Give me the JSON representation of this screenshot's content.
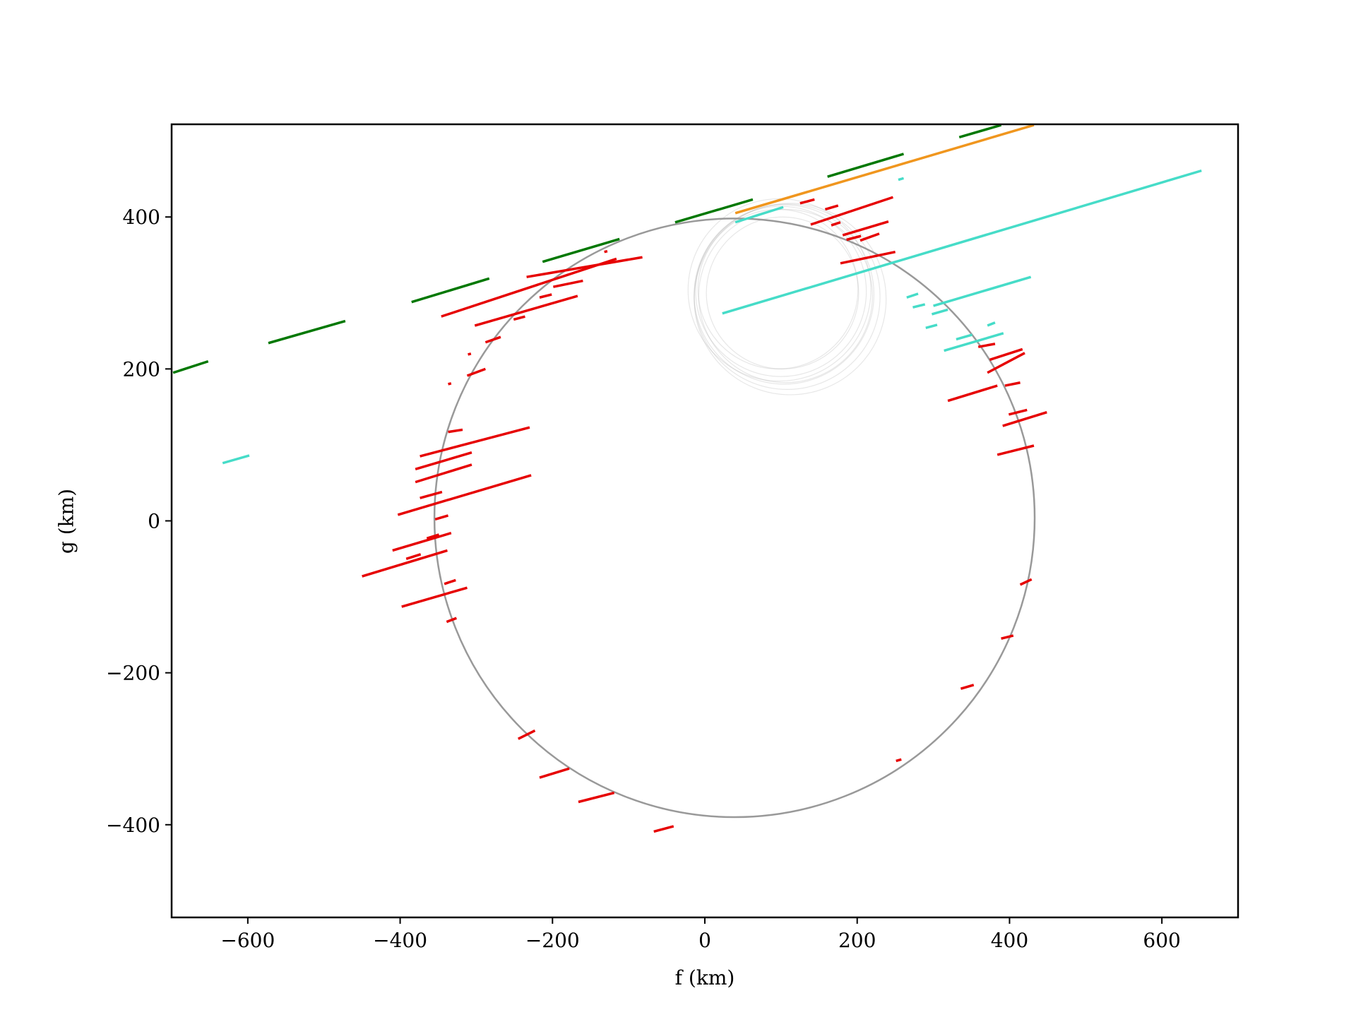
{
  "chart_data": {
    "type": "chords",
    "xlabel": "f (km)",
    "ylabel": "g (km)",
    "xlim": [
      -700,
      700
    ],
    "ylim": [
      -522,
      522
    ],
    "xticks": [
      {
        "value": -600,
        "label": "−600"
      },
      {
        "value": -400,
        "label": "−400"
      },
      {
        "value": -200,
        "label": "−200"
      },
      0,
      200,
      400,
      600
    ],
    "yticks": [
      {
        "value": -400,
        "label": "−400"
      },
      {
        "value": -200,
        "label": "−200"
      },
      0,
      200,
      400
    ],
    "series": [
      {
        "color": "#007800",
        "segments": [
          [
            -698,
            195,
            -652,
            210
          ],
          [
            -573,
            234,
            -472,
            263
          ],
          [
            -385,
            288,
            -283,
            319
          ],
          [
            -213,
            341,
            -112,
            371
          ],
          [
            -39,
            393,
            63,
            423
          ],
          [
            161,
            453,
            261,
            483
          ],
          [
            334,
            505,
            389,
            521
          ]
        ]
      },
      {
        "color": "#f0961e",
        "segments": [
          [
            40,
            405,
            432,
            521
          ]
        ]
      },
      {
        "color": "#46dcc8",
        "segments": [
          [
            23,
            273,
            652,
            461
          ],
          [
            -633,
            76,
            -598,
            86
          ],
          [
            254,
            449,
            261,
            451
          ],
          [
            314,
            224,
            392,
            247
          ],
          [
            300,
            283,
            428,
            321
          ],
          [
            265,
            294,
            280,
            299
          ],
          [
            273,
            281,
            289,
            285
          ],
          [
            298,
            272,
            319,
            278
          ],
          [
            290,
            254,
            305,
            258
          ],
          [
            330,
            239,
            351,
            245
          ],
          [
            371,
            257,
            381,
            261
          ],
          [
            40,
            393,
            103,
            413
          ]
        ]
      },
      {
        "color": "#e60000",
        "segments": [
          [
            -346,
            269,
            -116,
            345
          ],
          [
            -302,
            257,
            -167,
            296
          ],
          [
            -234,
            321,
            -82,
            347
          ],
          [
            -199,
            308,
            -160,
            316
          ],
          [
            -251,
            265,
            -236,
            269
          ],
          [
            -288,
            235,
            -268,
            242
          ],
          [
            -311,
            219,
            -307,
            220
          ],
          [
            -312,
            191,
            -288,
            200
          ],
          [
            -337,
            180,
            -333,
            181
          ],
          [
            -132,
            354,
            -128,
            355
          ],
          [
            -217,
            294,
            -201,
            298
          ],
          [
            -374,
            85,
            -230,
            123
          ],
          [
            -380,
            68,
            -306,
            90
          ],
          [
            -380,
            51,
            -306,
            74
          ],
          [
            -403,
            8,
            -228,
            60
          ],
          [
            -337,
            117,
            -318,
            120
          ],
          [
            -374,
            30,
            -345,
            38
          ],
          [
            -354,
            2,
            -337,
            7
          ],
          [
            -410,
            -39,
            -333,
            -16
          ],
          [
            -450,
            -73,
            -338,
            -39
          ],
          [
            -398,
            -113,
            -312,
            -88
          ],
          [
            -392,
            -50,
            -373,
            -44
          ],
          [
            -342,
            -83,
            -327,
            -78
          ],
          [
            -339,
            -133,
            -326,
            -128
          ],
          [
            -365,
            -23,
            -349,
            -18
          ],
          [
            319,
            158,
            384,
            178
          ],
          [
            371,
            195,
            420,
            221
          ],
          [
            374,
            212,
            417,
            226
          ],
          [
            391,
            125,
            449,
            143
          ],
          [
            384,
            87,
            432,
            99
          ],
          [
            399,
            140,
            423,
            146
          ],
          [
            394,
            178,
            414,
            182
          ],
          [
            359,
            229,
            381,
            233
          ],
          [
            414,
            -84,
            429,
            -77
          ],
          [
            389,
            -155,
            405,
            -151
          ],
          [
            336,
            -221,
            353,
            -216
          ],
          [
            251,
            -316,
            258,
            -314
          ],
          [
            139,
            390,
            247,
            426
          ],
          [
            178,
            339,
            250,
            354
          ],
          [
            181,
            376,
            241,
            394
          ],
          [
            204,
            369,
            229,
            378
          ],
          [
            125,
            418,
            144,
            423
          ],
          [
            166,
            389,
            178,
            393
          ],
          [
            186,
            370,
            205,
            375
          ],
          [
            158,
            410,
            175,
            415
          ],
          [
            -245,
            -287,
            -223,
            -276
          ],
          [
            -217,
            -338,
            -178,
            -326
          ],
          [
            -166,
            -370,
            -119,
            -358
          ],
          [
            -67,
            -409,
            -41,
            -402
          ]
        ]
      }
    ],
    "circles": [
      {
        "center": [
          39,
          4
        ],
        "radius": 394,
        "color": "#999999"
      }
    ],
    "faint_circles": {
      "color": "#bbbbbb",
      "items": [
        {
          "center": [
            104,
            298
          ],
          "radius": 118
        },
        {
          "center": [
            100,
            302
          ],
          "radius": 112
        },
        {
          "center": [
            108,
            295
          ],
          "radius": 122
        },
        {
          "center": [
            96,
            305
          ],
          "radius": 105
        },
        {
          "center": [
            112,
            292
          ],
          "radius": 126
        },
        {
          "center": [
            102,
            300
          ],
          "radius": 100
        },
        {
          "center": [
            106,
            296
          ],
          "radius": 114
        },
        {
          "center": [
            98,
            304
          ],
          "radius": 120
        }
      ]
    }
  }
}
